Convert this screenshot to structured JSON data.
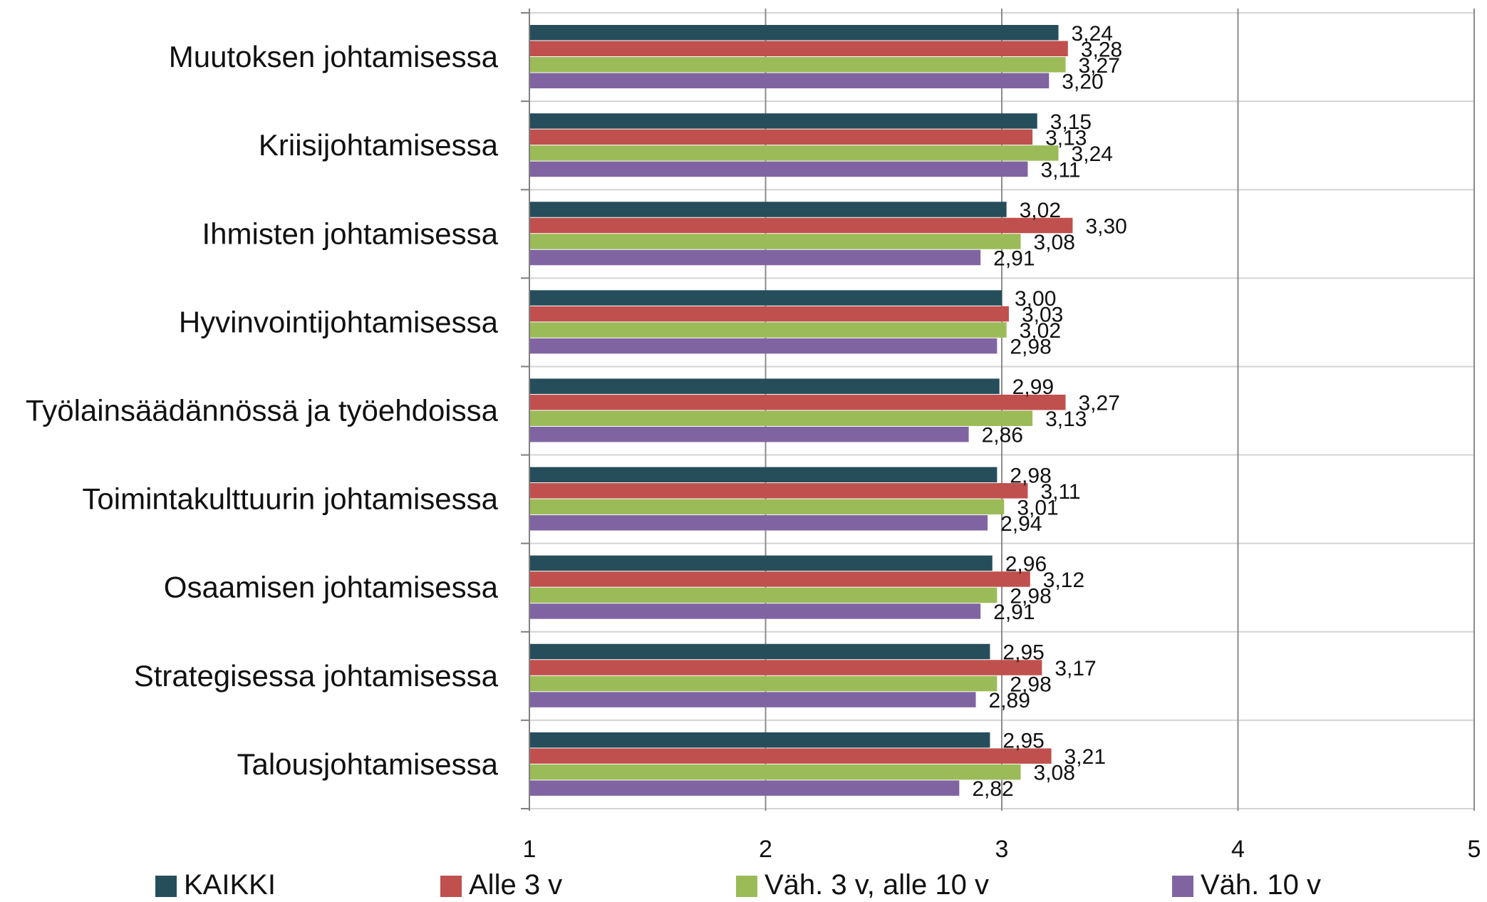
{
  "chart_data": {
    "type": "bar",
    "orientation": "horizontal",
    "categories": [
      "Muutoksen johtamisessa",
      "Kriisijohtamisessa",
      "Ihmisten johtamisessa",
      "Hyvinvointijohtamisessa",
      "Työlainsäädännössä ja työehdoissa",
      "Toimintakulttuurin johtamisessa",
      "Osaamisen johtamisessa",
      "Strategisessa johtamisessa",
      "Talousjohtamisessa"
    ],
    "series": [
      {
        "name": "KAIKKI",
        "color": "#254E5A",
        "values": [
          3.24,
          3.15,
          3.02,
          3.0,
          2.99,
          2.98,
          2.96,
          2.95,
          2.95
        ],
        "labels": [
          "3,24",
          "3,15",
          "3,02",
          "3,00",
          "2,99",
          "2,98",
          "2,96",
          "2,95",
          "2,95"
        ]
      },
      {
        "name": "Alle 3 v",
        "color": "#C0504D",
        "values": [
          3.28,
          3.13,
          3.3,
          3.03,
          3.27,
          3.11,
          3.12,
          3.17,
          3.21
        ],
        "labels": [
          "3,28",
          "3,13",
          "3,30",
          "3,03",
          "3,27",
          "3,11",
          "3,12",
          "3,17",
          "3,21"
        ]
      },
      {
        "name": "Väh. 3 v, alle 10 v",
        "color": "#9BBB59",
        "values": [
          3.27,
          3.24,
          3.08,
          3.02,
          3.13,
          3.01,
          2.98,
          2.98,
          3.08
        ],
        "labels": [
          "3,27",
          "3,24",
          "3,08",
          "3,02",
          "3,13",
          "3,01",
          "2,98",
          "2,98",
          "3,08"
        ]
      },
      {
        "name": "Väh. 10 v",
        "color": "#8064A2",
        "values": [
          3.2,
          3.11,
          2.91,
          2.98,
          2.86,
          2.94,
          2.91,
          2.89,
          2.82
        ],
        "labels": [
          "3,20",
          "3,11",
          "2,91",
          "2,98",
          "2,86",
          "2,94",
          "2,91",
          "2,89",
          "2,82"
        ]
      }
    ],
    "xlim": [
      1,
      5
    ],
    "xticks": [
      "1",
      "2",
      "3",
      "4",
      "5"
    ],
    "title": "",
    "xlabel": "",
    "ylabel": "",
    "grid": true,
    "legend_position": "bottom"
  }
}
